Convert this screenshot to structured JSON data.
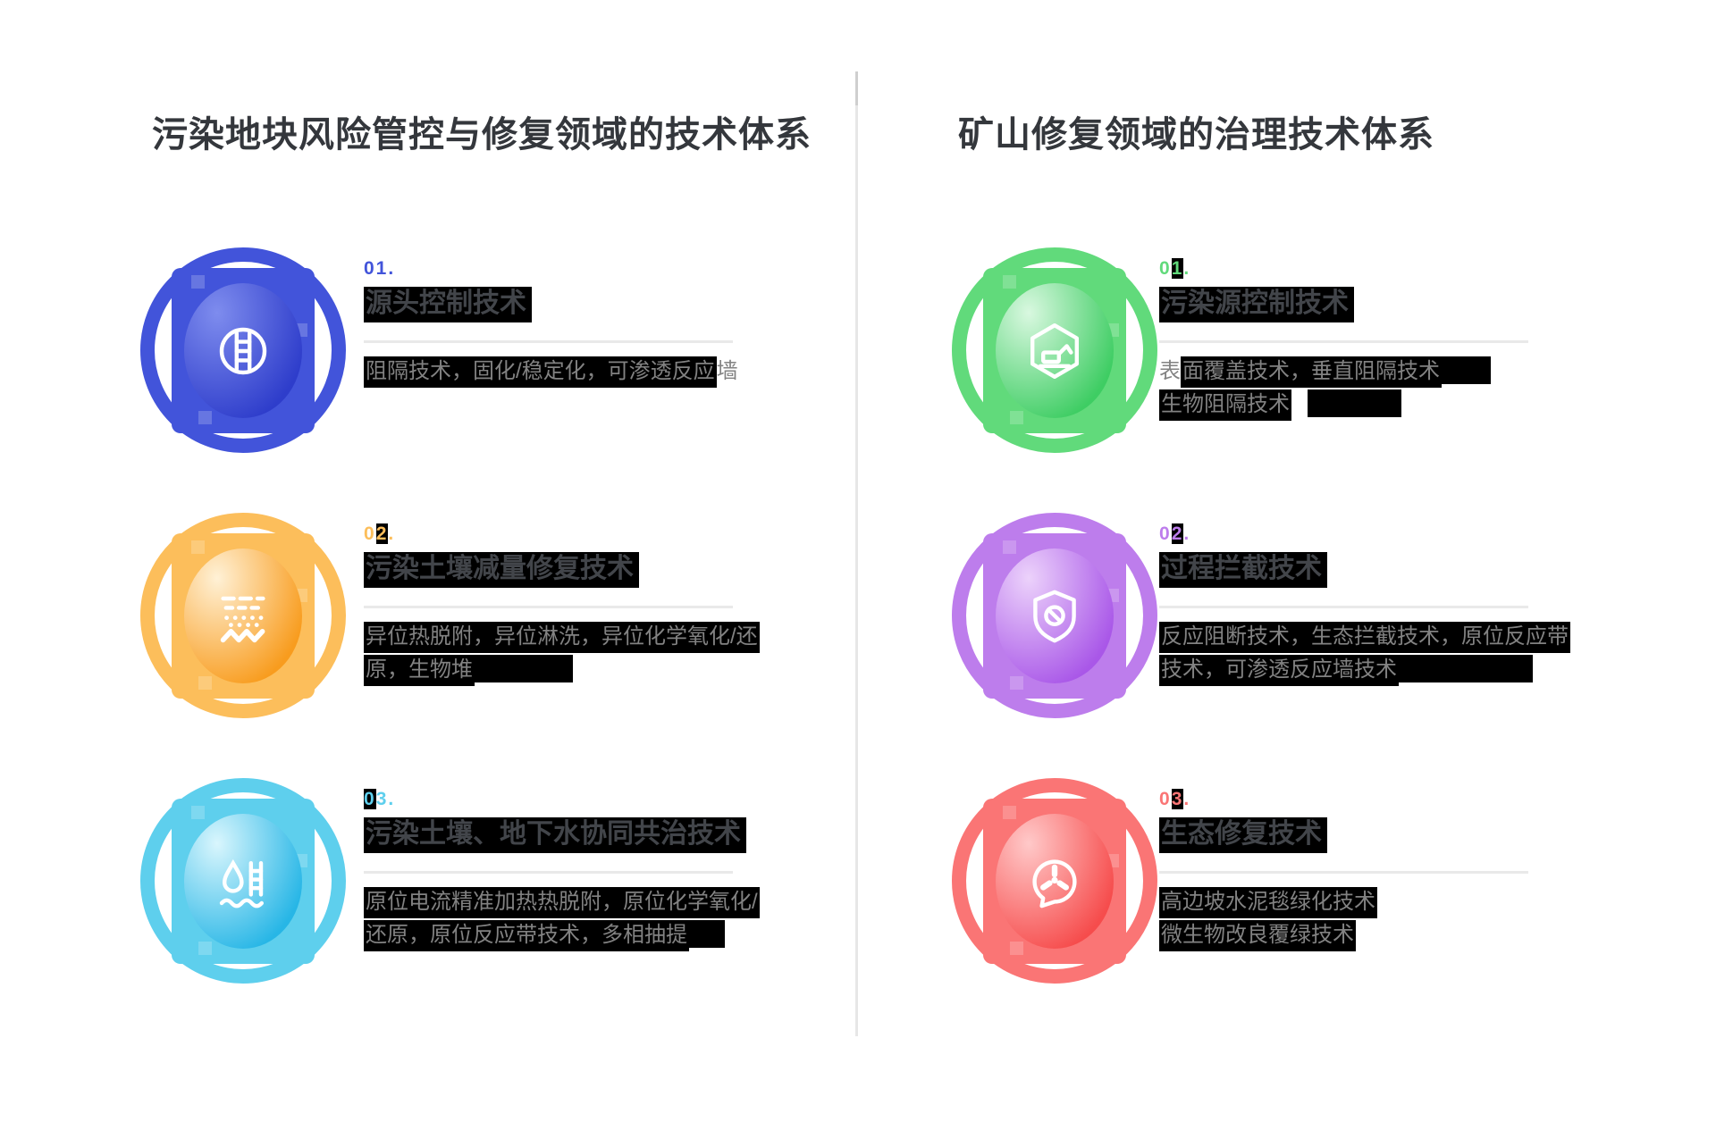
{
  "colors": {
    "separator": "#e7e7e7",
    "divider": "#e9e9e9",
    "title_text": "#34373c",
    "desc_text": "#828282",
    "highlight_box": "#000000"
  },
  "left_section": {
    "title": "污染地块风险管控与修复领域的技术体系",
    "items": [
      {
        "accent": "#4254da",
        "c_light": "#7e8cee",
        "c_dark": "#2e3dcb",
        "icon": "barrier-icon",
        "num": [
          {
            "t": "01."
          }
        ],
        "title": "源头控制技术",
        "desc": [
          [
            {
              "t": "阻隔技术，固化/稳定化，可渗透反应",
              "hl": true
            },
            {
              "t": "墙"
            }
          ]
        ]
      },
      {
        "accent": "#fcbe5b",
        "c_light": "#fff1d6",
        "c_dark": "#f89c1e",
        "icon": "soil-infiltration-icon",
        "num": [
          {
            "t": "0"
          },
          {
            "t": "2",
            "hl": true
          },
          {
            "t": "."
          }
        ],
        "title": "污染土壤减量修复技术",
        "desc": [
          [
            {
              "t": "异位热脱附，异位淋洗，异位化学氧化/还",
              "hl": true
            }
          ],
          [
            {
              "t": "原，生物堆",
              "hl": true
            },
            {
              "bar": 110
            }
          ]
        ]
      },
      {
        "accent": "#5ecfed",
        "c_light": "#d9f6fd",
        "c_dark": "#27b6e6",
        "icon": "groundwater-icon",
        "num": [
          {
            "t": "0",
            "hl": true
          },
          {
            "t": "3."
          }
        ],
        "title": "污染土壤、地下水协同共治技术",
        "desc": [
          [
            {
              "t": "原位电流精准加热热脱附，原位化学氧化/",
              "hl": true
            }
          ],
          [
            {
              "t": "还原，原位反应带技术，多相抽提",
              "hl": true
            },
            {
              "bar": 40
            }
          ]
        ]
      }
    ]
  },
  "right_section": {
    "title": "矿山修复领域的治理技术体系",
    "items": [
      {
        "accent": "#61da7b",
        "c_light": "#d9f8e0",
        "c_dark": "#3ecd63",
        "icon": "excavator-hexagon-icon",
        "num": [
          {
            "t": "0"
          },
          {
            "t": "1",
            "hl": true
          },
          {
            "t": "."
          }
        ],
        "title": "污染源控制技术",
        "desc": [
          [
            {
              "t": "表"
            },
            {
              "t": "面覆盖技术，垂直阻隔技术",
              "hl": true
            },
            {
              "bar": 55
            }
          ],
          [
            {
              "t": "生物阻隔技术",
              "hl": true
            },
            {
              "bar": 105,
              "gap": 18
            }
          ]
        ]
      },
      {
        "accent": "#bd7dec",
        "c_light": "#ecd2fb",
        "c_dark": "#a957e8",
        "icon": "shield-block-icon",
        "num": [
          {
            "t": "0"
          },
          {
            "t": "2",
            "hl": true
          },
          {
            "t": "."
          }
        ],
        "title": "过程拦截技术",
        "desc": [
          [
            {
              "t": "反应阻断技术，生态拦截技术，原位反应带",
              "hl": true
            }
          ],
          [
            {
              "t": "技术，可渗透反应墙技术",
              "hl": true
            },
            {
              "bar": 150
            }
          ]
        ]
      },
      {
        "accent": "#fa7575",
        "c_light": "#ffc9c9",
        "c_dark": "#f64c4c",
        "icon": "radiation-bubble-icon",
        "num": [
          {
            "t": "0"
          },
          {
            "t": "3",
            "hl": true
          },
          {
            "t": "."
          }
        ],
        "title": "生态修复技术",
        "desc": [
          [
            {
              "t": "高边坡水泥毯绿化技术",
              "hl": true
            }
          ],
          [
            {
              "t": "微生物改良覆绿技术",
              "hl": true
            }
          ]
        ]
      }
    ]
  }
}
